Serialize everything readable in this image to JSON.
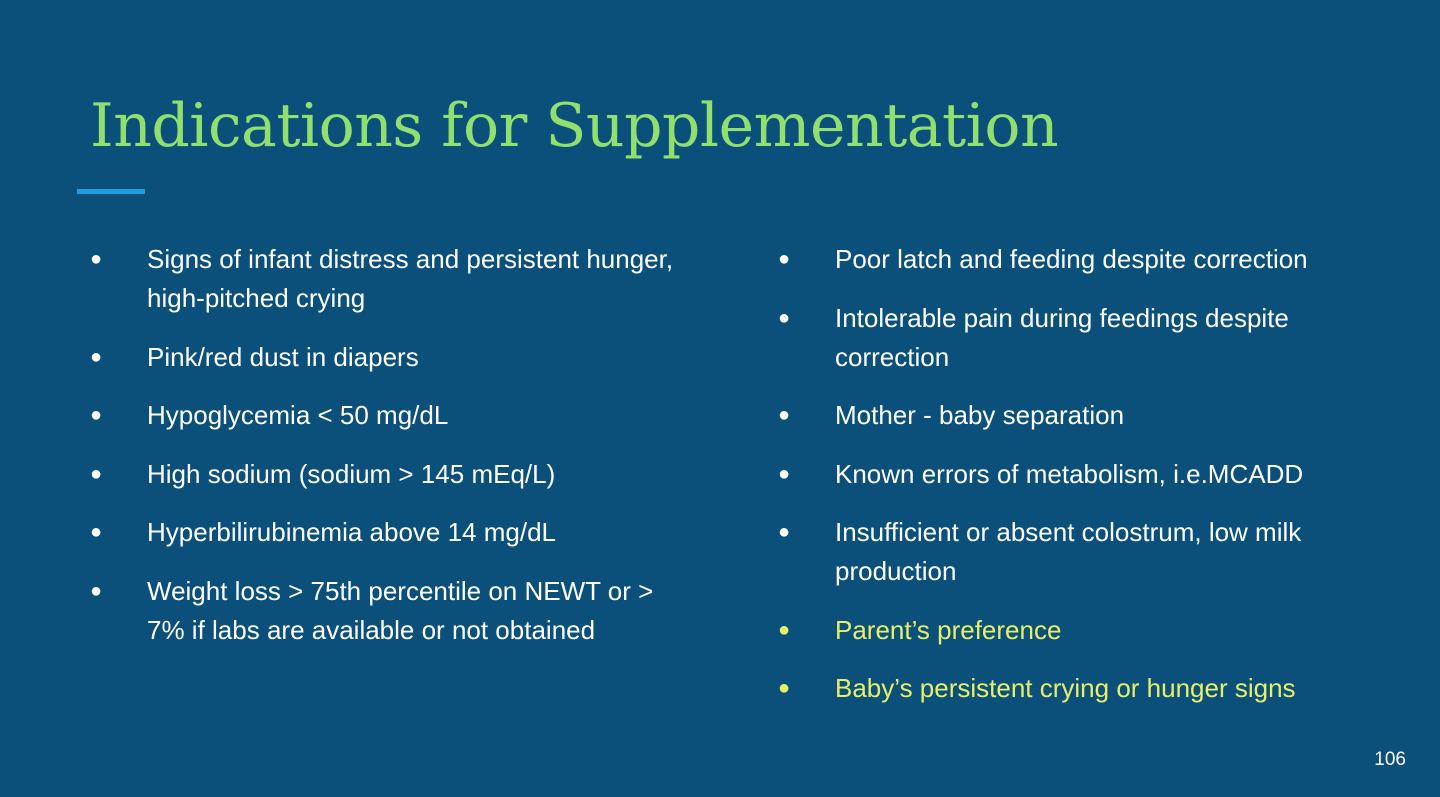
{
  "slide": {
    "title": "Indications for Supplementation",
    "bullet_glyph": "●",
    "left_column": [
      {
        "text": "Signs of infant distress and persistent hunger, high-pitched crying"
      },
      {
        "text": "Pink/red dust in diapers"
      },
      {
        "text": "Hypoglycemia < 50 mg/dL"
      },
      {
        "text": "High sodium (sodium > 145 mEq/L)"
      },
      {
        "text": "Hyperbilirubinemia above 14 mg/dL"
      },
      {
        "text": "Weight loss > 75th percentile on NEWT or > 7% if labs are available or not obtained"
      }
    ],
    "right_column": [
      {
        "text": "Poor latch and feeding despite correction"
      },
      {
        "text": "Intolerable pain during feedings despite correction"
      },
      {
        "text": "Mother - baby separation"
      },
      {
        "text": "Known errors of metabolism, i.e.MCADD"
      },
      {
        "text": "Insufficient or absent colostrum, low milk production"
      },
      {
        "text": "Parent’s preference"
      },
      {
        "text": "Baby’s persistent crying or hunger signs"
      }
    ],
    "page_number": "106"
  },
  "colors": {
    "background": "#0a507a",
    "title": "#8fe06e",
    "accent_rule": "#1e9ee0",
    "body_text": "#ffffff",
    "highlight_text": "#e8f06a"
  }
}
